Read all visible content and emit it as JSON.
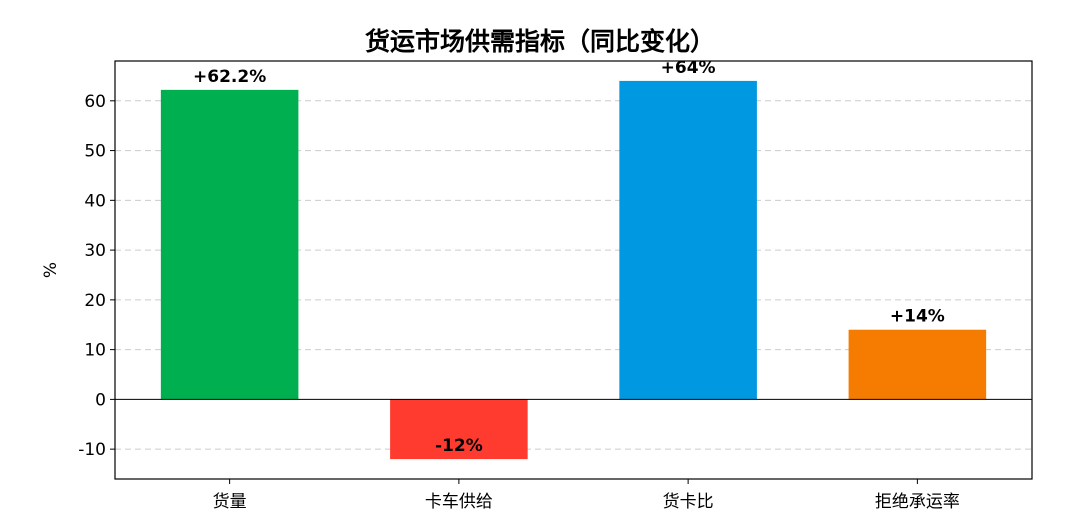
{
  "chart_data": {
    "type": "bar",
    "title": "货运市场供需指标（同比变化）",
    "xlabel": "",
    "ylabel": "%",
    "categories": [
      "货量",
      "卡车供给",
      "货卡比",
      "拒绝承运率"
    ],
    "values": [
      62.2,
      -12,
      64,
      14
    ],
    "value_labels": [
      "+62.2%",
      "-12%",
      "+64%",
      "+14%"
    ],
    "colors": [
      "#00b050",
      "#ff3b30",
      "#0098e0",
      "#f57c00"
    ],
    "ylim": [
      -16,
      68
    ],
    "yticks": [
      -10,
      0,
      10,
      20,
      30,
      40,
      50,
      60
    ],
    "ytick_labels": [
      "-10",
      "0",
      "10",
      "20",
      "30",
      "40",
      "50",
      "60"
    ],
    "grid": "horizontal-dashed",
    "legend": "none"
  }
}
